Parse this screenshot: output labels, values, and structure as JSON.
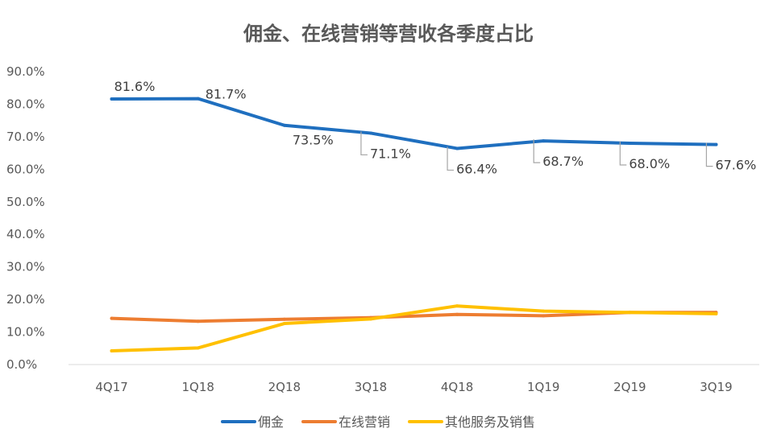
{
  "chart_data": {
    "type": "line",
    "title": "佣金、在线营销等营收各季度占比",
    "categories": [
      "4Q17",
      "1Q18",
      "2Q18",
      "3Q18",
      "4Q18",
      "1Q19",
      "2Q19",
      "3Q19"
    ],
    "y_ticks": [
      "0.0%",
      "10.0%",
      "20.0%",
      "30.0%",
      "40.0%",
      "50.0%",
      "60.0%",
      "70.0%",
      "80.0%",
      "90.0%"
    ],
    "ylim": [
      0,
      90
    ],
    "grid": false,
    "legend_position": "bottom",
    "series": [
      {
        "name": "佣金",
        "color": "#1F6FBF",
        "values": [
          81.6,
          81.7,
          73.5,
          71.1,
          66.4,
          68.7,
          68.0,
          67.6
        ],
        "data_labels": [
          "81.6%",
          "81.7%",
          "73.5%",
          "71.1%",
          "66.4%",
          "68.7%",
          "68.0%",
          "67.6%"
        ]
      },
      {
        "name": "在线营销",
        "color": "#ED7D31",
        "values": [
          14.2,
          13.3,
          13.9,
          14.4,
          15.4,
          15.0,
          16.0,
          16.0
        ]
      },
      {
        "name": "其他服务及销售",
        "color": "#FFC000",
        "values": [
          4.2,
          5.1,
          12.6,
          14.0,
          18.0,
          16.4,
          16.0,
          15.6
        ]
      }
    ]
  }
}
